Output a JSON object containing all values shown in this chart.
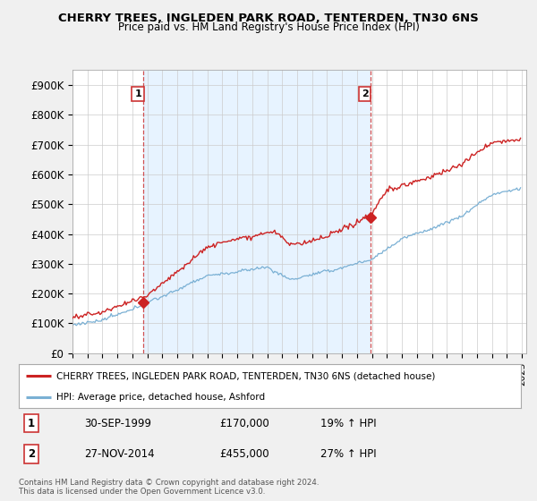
{
  "title1": "CHERRY TREES, INGLEDEN PARK ROAD, TENTERDEN, TN30 6NS",
  "title2": "Price paid vs. HM Land Registry's House Price Index (HPI)",
  "ylabel_ticks": [
    "£0",
    "£100K",
    "£200K",
    "£300K",
    "£400K",
    "£500K",
    "£600K",
    "£700K",
    "£800K",
    "£900K"
  ],
  "ytick_values": [
    0,
    100000,
    200000,
    300000,
    400000,
    500000,
    600000,
    700000,
    800000,
    900000
  ],
  "ylim": [
    0,
    950000
  ],
  "xlim_start": 1995.0,
  "xlim_end": 2025.3,
  "legend_line1": "CHERRY TREES, INGLEDEN PARK ROAD, TENTERDEN, TN30 6NS (detached house)",
  "legend_line2": "HPI: Average price, detached house, Ashford",
  "sale1_date": "30-SEP-1999",
  "sale1_price": "£170,000",
  "sale1_hpi": "19% ↑ HPI",
  "sale1_x": 1999.75,
  "sale1_y": 170000,
  "sale2_date": "27-NOV-2014",
  "sale2_price": "£455,000",
  "sale2_hpi": "27% ↑ HPI",
  "sale2_x": 2014.9,
  "sale2_y": 455000,
  "red_color": "#cc2222",
  "blue_color": "#7ab0d4",
  "dashed_line_color": "#cc3333",
  "background_color": "#f0f0f0",
  "plot_bg_color": "#ffffff",
  "shaded_bg_color": "#ddeeff",
  "footnote": "Contains HM Land Registry data © Crown copyright and database right 2024.\nThis data is licensed under the Open Government Licence v3.0."
}
